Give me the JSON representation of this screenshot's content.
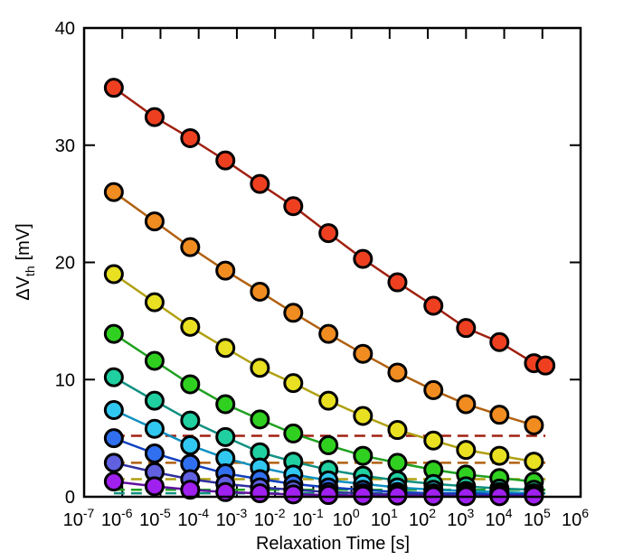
{
  "chart_data": {
    "type": "line",
    "xlabel": "Relaxation Time  [s]",
    "ylabel": {
      "main": "ΔV",
      "sub": "th",
      "unit": "[mV]"
    },
    "log_x": true,
    "x": [
      6e-07,
      7e-06,
      6e-05,
      0.0005,
      0.004,
      0.03,
      0.25,
      2,
      16,
      140,
      1000,
      7500,
      60000,
      120000
    ],
    "xlim": [
      1e-07,
      1000000.0
    ],
    "xticks": [
      {
        "value": 1e-07,
        "label": "10",
        "exponent": "-7"
      },
      {
        "value": 1e-06,
        "label": "10",
        "exponent": "-6"
      },
      {
        "value": 1e-05,
        "label": "10",
        "exponent": "-5"
      },
      {
        "value": 0.0001,
        "label": "10",
        "exponent": "-4"
      },
      {
        "value": 0.001,
        "label": "10",
        "exponent": "-3"
      },
      {
        "value": 0.01,
        "label": "10",
        "exponent": "-2"
      },
      {
        "value": 0.1,
        "label": "10",
        "exponent": "-1"
      },
      {
        "value": 1,
        "label": "10",
        "exponent": "0"
      },
      {
        "value": 10,
        "label": "10",
        "exponent": "1"
      },
      {
        "value": 100,
        "label": "10",
        "exponent": "2"
      },
      {
        "value": 1000,
        "label": "10",
        "exponent": "3"
      },
      {
        "value": 10000,
        "label": "10",
        "exponent": "4"
      },
      {
        "value": 100000,
        "label": "10",
        "exponent": "5"
      },
      {
        "value": 1000000,
        "label": "10",
        "exponent": "6"
      }
    ],
    "ylim": [
      0,
      40
    ],
    "yticks": [
      0,
      10,
      20,
      30,
      40
    ],
    "series": [
      {
        "color": "#ee4020",
        "line_color": "#a02010",
        "values": [
          34.9,
          32.4,
          30.6,
          28.7,
          26.7,
          24.8,
          22.5,
          20.3,
          18.3,
          16.3,
          14.4,
          13.2,
          11.4,
          11.2
        ]
      },
      {
        "color": "#f08c20",
        "line_color": "#b06010",
        "values": [
          26.0,
          23.5,
          21.3,
          19.3,
          17.5,
          15.7,
          13.9,
          12.2,
          10.6,
          9.1,
          7.9,
          7.0,
          6.1,
          null
        ]
      },
      {
        "color": "#e8e020",
        "line_color": "#b0a010",
        "values": [
          19.0,
          16.6,
          14.5,
          12.7,
          11.0,
          9.7,
          8.2,
          6.9,
          5.7,
          4.8,
          4.0,
          3.5,
          3.0,
          null
        ]
      },
      {
        "color": "#30d020",
        "line_color": "#20a020",
        "values": [
          13.9,
          11.6,
          9.6,
          7.9,
          6.6,
          5.4,
          4.4,
          3.5,
          2.9,
          2.3,
          1.9,
          1.6,
          1.3,
          null
        ]
      },
      {
        "color": "#20d0a0",
        "line_color": "#109080",
        "values": [
          10.2,
          8.2,
          6.5,
          5.1,
          3.8,
          3.0,
          2.3,
          1.8,
          1.4,
          1.1,
          0.9,
          0.7,
          0.6,
          null
        ]
      },
      {
        "color": "#30c8f0",
        "line_color": "#1090c0",
        "values": [
          7.4,
          5.8,
          4.4,
          3.3,
          2.5,
          1.9,
          1.4,
          1.1,
          0.8,
          0.6,
          0.5,
          0.4,
          0.3,
          null
        ]
      },
      {
        "color": "#3070f0",
        "line_color": "#1040c0",
        "values": [
          5.0,
          3.7,
          2.8,
          2.0,
          1.5,
          1.1,
          0.8,
          0.6,
          0.4,
          0.3,
          0.3,
          0.2,
          0.2,
          null
        ]
      },
      {
        "color": "#6060e0",
        "line_color": "#3030a0",
        "values": [
          2.9,
          2.1,
          1.5,
          1.1,
          0.8,
          0.6,
          0.4,
          0.3,
          0.2,
          0.2,
          0.1,
          0.1,
          0.1,
          null
        ]
      },
      {
        "color": "#a020f0",
        "line_color": "#6010a0",
        "values": [
          1.3,
          0.9,
          0.6,
          0.4,
          0.3,
          0.2,
          0.15,
          0.1,
          0.1,
          0.05,
          0.05,
          0.05,
          0.05,
          null
        ]
      }
    ],
    "dashed_lines": [
      {
        "value": 5.2,
        "color": "#a02010"
      },
      {
        "value": 2.9,
        "color": "#b06010"
      },
      {
        "value": 1.5,
        "color": "#b0a010"
      },
      {
        "value": 0.6,
        "color": "#20a020"
      },
      {
        "value": 0.3,
        "color": "#109080"
      }
    ]
  }
}
